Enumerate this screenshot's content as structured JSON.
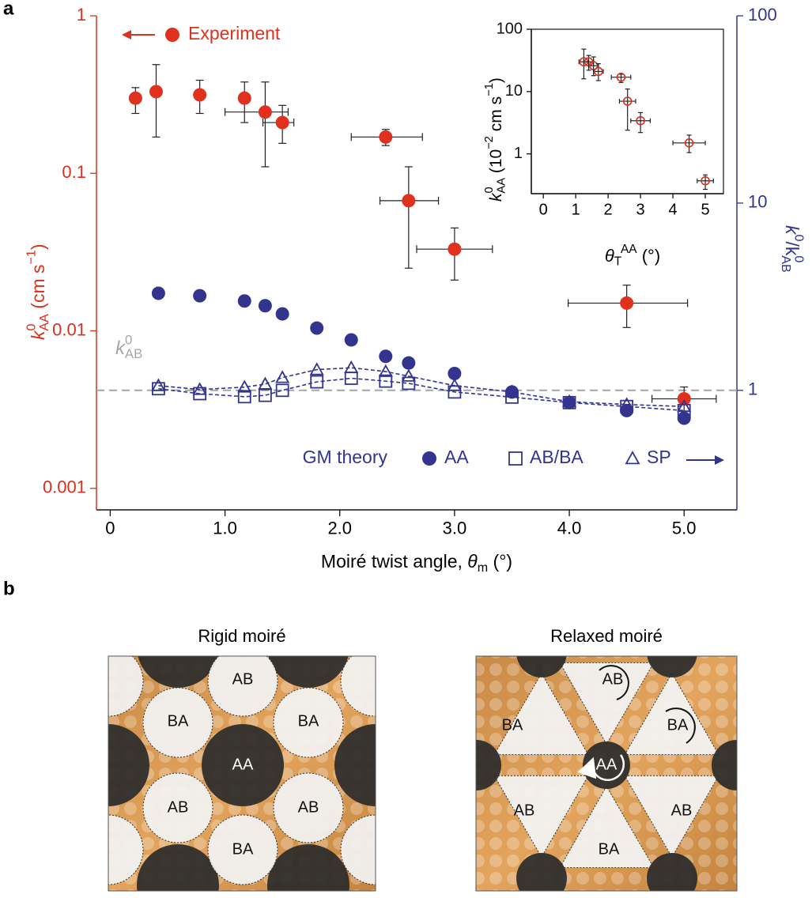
{
  "panel_labels": [
    "a",
    "b"
  ],
  "chart_data": [
    {
      "type": "scatter",
      "xlabel": [
        "Moiré twist angle, ",
        "θ",
        "m",
        " (°)"
      ],
      "ylabel": [
        "k",
        "0",
        "AA",
        " (cm s",
        "−1",
        ")"
      ],
      "y2label": [
        "k",
        "0",
        "/k",
        "0",
        "AB"
      ],
      "xlim": [
        -0.12,
        5.46
      ],
      "xticks": [
        0,
        {
          "value": 1,
          "label": "1.0"
        },
        {
          "value": 2,
          "label": "2.0"
        },
        {
          "value": 3,
          "label": "3.0"
        },
        {
          "value": 4,
          "label": "4.0"
        },
        {
          "value": 5,
          "label": "5.0"
        }
      ],
      "ylim": [
        0.00073,
        1
      ],
      "yticks": [
        0.001,
        0.01,
        0.1,
        1
      ],
      "y_log": true,
      "y2lim": [
        0.23,
        100
      ],
      "y2ticks": [
        1,
        10,
        100
      ],
      "y2_log": true,
      "left_axis_color": "#d7301f",
      "right_axis_color": "#33348e",
      "legend_group": "GM theory",
      "reference_line": {
        "value": 1,
        "axis": "y2",
        "label": [
          "k",
          "0",
          "AB"
        ],
        "color": "#a6a6a6"
      },
      "series": [
        {
          "name": "Experiment",
          "color": "#e0301e",
          "marker": "circle",
          "x": [
            0.22,
            0.4,
            0.78,
            1.17,
            1.35,
            1.5,
            2.4,
            2.6,
            3.0,
            4.5,
            5.0
          ],
          "values": [
            0.3,
            0.33,
            0.315,
            0.3,
            0.245,
            0.21,
            0.17,
            0.067,
            0.033,
            0.015,
            0.0037
          ],
          "ylow": [
            0.24,
            0.17,
            0.24,
            0.21,
            0.11,
            0.155,
            0.15,
            0.025,
            0.021,
            0.0105,
            0.0026
          ],
          "yhigh": [
            0.35,
            0.49,
            0.39,
            0.38,
            0.38,
            0.27,
            0.19,
            0.11,
            0.045,
            0.0195,
            0.0044
          ],
          "xlow": [
            null,
            null,
            null,
            null,
            1.0,
            1.33,
            2.1,
            2.35,
            2.67,
            3.99,
            4.72
          ],
          "xhigh": [
            null,
            null,
            null,
            null,
            1.55,
            1.6,
            2.72,
            2.86,
            3.33,
            5.03,
            5.28
          ]
        },
        {
          "name": "AA",
          "axis": "y2",
          "color": "#33348e",
          "marker": "circle",
          "x": [
            0.42,
            0.78,
            1.17,
            1.35,
            1.5,
            1.8,
            2.1,
            2.4,
            2.6,
            3.0,
            3.5,
            4.0,
            4.5,
            5.0
          ],
          "values": [
            3.3,
            3.2,
            3.0,
            2.83,
            2.56,
            2.15,
            1.86,
            1.52,
            1.4,
            1.23,
            0.98,
            0.86,
            0.78,
            0.71
          ]
        },
        {
          "name": "AB/BA",
          "axis": "y2",
          "color": "#33348e",
          "marker": "square",
          "line": "dashed",
          "x": [
            0.42,
            0.78,
            1.17,
            1.35,
            1.5,
            1.8,
            2.1,
            2.4,
            2.6,
            3.0,
            3.5,
            4.0,
            4.5,
            5.0
          ],
          "values": [
            1.02,
            0.96,
            0.925,
            0.94,
            1.0,
            1.11,
            1.16,
            1.12,
            1.09,
            0.98,
            0.92,
            0.86,
            0.82,
            0.78
          ]
        },
        {
          "name": "SP",
          "axis": "y2",
          "color": "#33348e",
          "marker": "triangle",
          "line": "dashed",
          "x": [
            0.42,
            0.78,
            1.17,
            1.35,
            1.5,
            1.8,
            2.1,
            2.4,
            2.6,
            3.0,
            3.5,
            4.0,
            4.5,
            5.0
          ],
          "values": [
            1.06,
            1.01,
            1.04,
            1.08,
            1.17,
            1.29,
            1.32,
            1.26,
            1.19,
            1.06,
            0.98,
            0.87,
            0.84,
            0.82
          ]
        }
      ]
    },
    {
      "type": "scatter",
      "xlabel": [
        "θ",
        "T",
        "AA",
        " (°)"
      ],
      "ylabel": [
        "k",
        "0",
        "AA",
        " (10",
        "−2",
        " cm s",
        "−1",
        ")"
      ],
      "xlim": [
        -0.37,
        5.56
      ],
      "xticks": [
        0,
        1,
        2,
        3,
        4,
        5
      ],
      "ylim": [
        0.23,
        100
      ],
      "yticks": [
        1,
        10,
        100
      ],
      "y_log": true,
      "series": [
        {
          "color": "#d7301f",
          "marker": "open-circle",
          "x": [
            1.25,
            1.4,
            1.55,
            1.7,
            2.4,
            2.6,
            3.0,
            4.5,
            5.0
          ],
          "values": [
            30,
            30,
            26,
            21,
            17,
            7,
            3.4,
            1.5,
            0.37
          ],
          "ylow": [
            16,
            22,
            18,
            15,
            14,
            2.4,
            2.2,
            1.05,
            0.27
          ],
          "yhigh": [
            48,
            38,
            36,
            28,
            19,
            11,
            4.6,
            2.0,
            0.46
          ],
          "xlow": [
            1.1,
            1.25,
            1.4,
            1.55,
            2.1,
            2.35,
            2.7,
            4.0,
            4.75
          ],
          "xhigh": [
            1.4,
            1.55,
            1.7,
            1.85,
            2.7,
            2.85,
            3.3,
            5.0,
            5.25
          ]
        }
      ]
    }
  ],
  "diagram": {
    "titles": [
      "Rigid moiré",
      "Relaxed moiré"
    ],
    "rigid_labels": [
      "AB",
      "BA",
      "BA",
      "AA",
      "AB",
      "AB",
      "BA"
    ],
    "relaxed_labels": [
      "AB",
      "BA",
      "BA",
      "AA",
      "AB",
      "AB",
      "BA"
    ]
  }
}
